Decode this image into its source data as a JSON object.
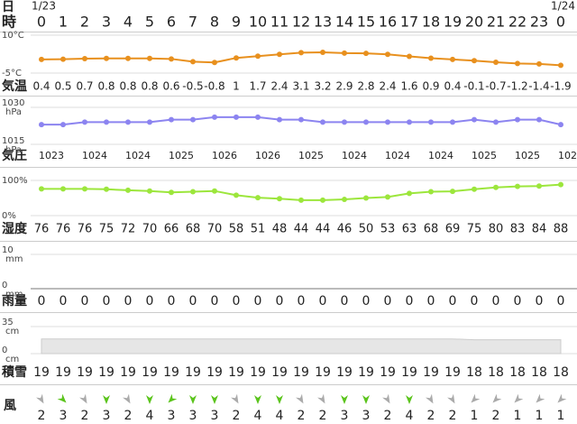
{
  "dates": [
    "1/23",
    null,
    null,
    null,
    null,
    null,
    null,
    null,
    null,
    null,
    null,
    null,
    null,
    null,
    null,
    null,
    null,
    null,
    null,
    null,
    null,
    null,
    null,
    null,
    "1/24"
  ],
  "hours": [
    0,
    1,
    2,
    3,
    4,
    5,
    6,
    7,
    8,
    9,
    10,
    11,
    12,
    13,
    14,
    15,
    16,
    17,
    18,
    19,
    20,
    21,
    22,
    23,
    0
  ],
  "row_labels": {
    "date": "日",
    "hour": "時"
  },
  "temperature": {
    "type": "line",
    "label": "気温",
    "color": "#e8901e",
    "ylim": [
      -5,
      10
    ],
    "yticks": [
      {
        "value": -5,
        "label": "-5°C"
      },
      {
        "value": 10,
        "label": "10°C"
      }
    ],
    "values": [
      0.4,
      0.5,
      0.7,
      0.8,
      0.8,
      0.8,
      0.6,
      -0.5,
      -0.8,
      1,
      1.7,
      2.4,
      3.1,
      3.2,
      2.9,
      2.8,
      2.4,
      1.6,
      0.9,
      0.4,
      -0.1,
      -0.7,
      -1.2,
      -1.4,
      -1.9
    ]
  },
  "pressure": {
    "type": "line",
    "label": "気圧",
    "color": "#8c84f0",
    "unit": "hPa",
    "ylim": [
      1015,
      1030
    ],
    "yticks": [
      1015,
      1030
    ],
    "values": [
      1023,
      1023,
      1024,
      1024,
      1024,
      1024,
      1025,
      1025,
      1026,
      1026,
      1026,
      1025,
      1025,
      1024,
      1024,
      1024,
      1024,
      1024,
      1024,
      1024,
      1025,
      1024,
      1025,
      1025,
      1023
    ]
  },
  "humidity": {
    "type": "line",
    "label": "湿度",
    "color": "#9ce63c",
    "ylim": [
      0,
      100
    ],
    "yticks": [
      {
        "value": 0,
        "label": "0%"
      },
      {
        "value": 100,
        "label": "100%"
      }
    ],
    "values": [
      76,
      76,
      76,
      75,
      72,
      70,
      66,
      68,
      70,
      58,
      51,
      48,
      44,
      44,
      46,
      50,
      53,
      63,
      68,
      69,
      75,
      80,
      83,
      84,
      88
    ]
  },
  "precipitation": {
    "type": "bar",
    "label": "雨量",
    "color": "#6aa0e0",
    "unit": "mm",
    "ylim": [
      0,
      10
    ],
    "yticks": [
      0,
      10
    ],
    "values": [
      0,
      0,
      0,
      0,
      0,
      0,
      0,
      0,
      0,
      0,
      0,
      0,
      0,
      0,
      0,
      0,
      0,
      0,
      0,
      0,
      0,
      0,
      0,
      0,
      0
    ]
  },
  "snow": {
    "type": "area",
    "label": "積雪",
    "color": "#e6e6e6",
    "unit": "cm",
    "ylim": [
      0,
      35
    ],
    "yticks": [
      0,
      35
    ],
    "values": [
      19,
      19,
      19,
      19,
      19,
      19,
      19,
      19,
      19,
      19,
      19,
      19,
      19,
      19,
      19,
      19,
      19,
      19,
      19,
      19,
      18,
      18,
      18,
      18,
      18
    ]
  },
  "wind": {
    "type": "arrows",
    "label": "風",
    "speeds": [
      2,
      3,
      2,
      3,
      2,
      4,
      3,
      3,
      3,
      2,
      4,
      4,
      2,
      2,
      3,
      3,
      2,
      4,
      2,
      2,
      1,
      2,
      1,
      1,
      1
    ],
    "directions": [
      150,
      135,
      150,
      180,
      150,
      180,
      225,
      180,
      180,
      150,
      180,
      180,
      150,
      150,
      180,
      180,
      150,
      180,
      150,
      150,
      225,
      225,
      225,
      225,
      225
    ],
    "colors": [
      "#aaa",
      "#5bc41c",
      "#aaa",
      "#5bc41c",
      "#aaa",
      "#5bc41c",
      "#5bc41c",
      "#5bc41c",
      "#5bc41c",
      "#aaa",
      "#5bc41c",
      "#5bc41c",
      "#aaa",
      "#aaa",
      "#5bc41c",
      "#5bc41c",
      "#aaa",
      "#5bc41c",
      "#aaa",
      "#aaa",
      "#aaa",
      "#aaa",
      "#aaa",
      "#aaa",
      "#aaa"
    ]
  }
}
